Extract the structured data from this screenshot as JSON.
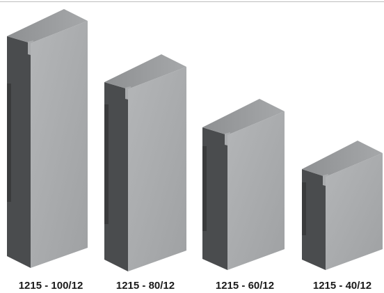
{
  "profiles": [
    {
      "label": "1215 - 100/12"
    },
    {
      "label": "1215 - 80/12"
    },
    {
      "label": "1215 - 60/12"
    },
    {
      "label": "1215 - 40/12"
    }
  ]
}
